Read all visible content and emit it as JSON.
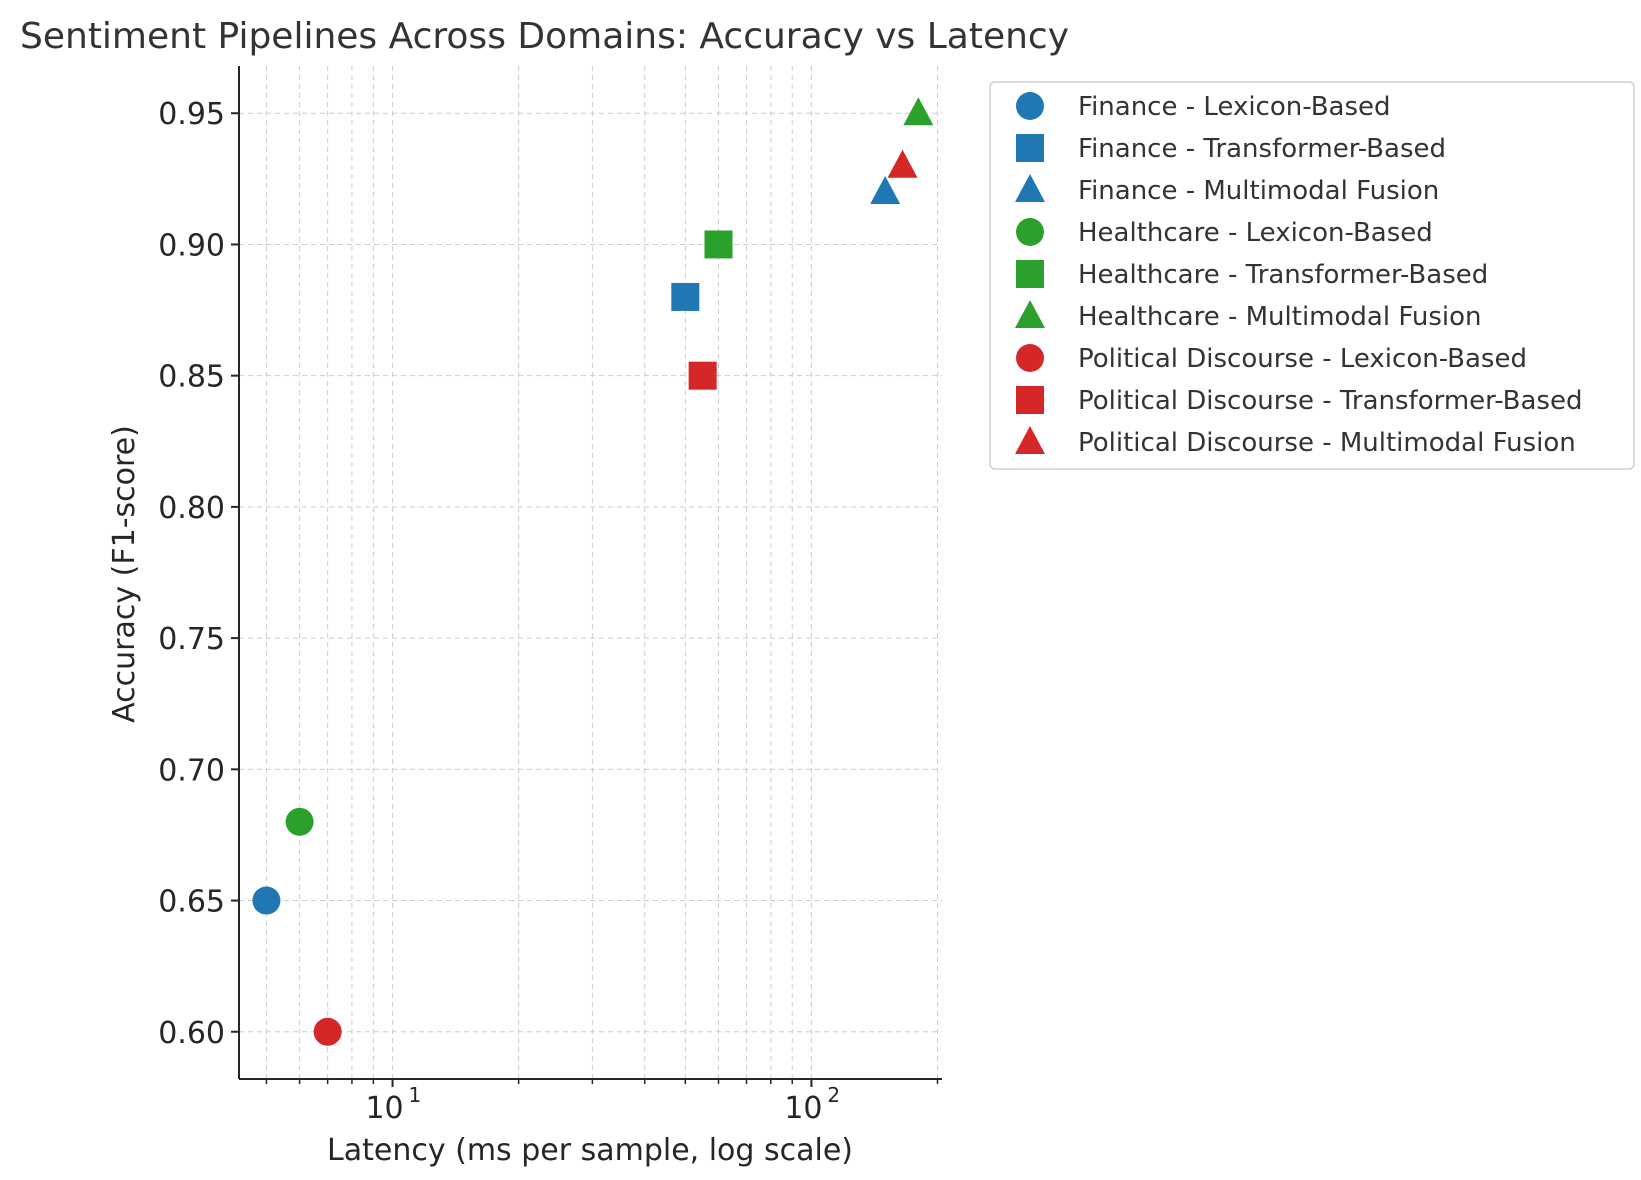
{
  "chart_data": {
    "type": "scatter",
    "title": "Sentiment Pipelines Across Domains: Accuracy vs Latency",
    "xlabel": "Latency (ms per sample, log scale)",
    "ylabel": "Accuracy (F1-score)",
    "xscale": "log",
    "xlim": [
      4.3,
      205
    ],
    "ylim": [
      0.582,
      0.968
    ],
    "x_tick_labels": [
      {
        "value": 10,
        "base": "10",
        "exp": "1"
      },
      {
        "value": 100,
        "base": "10",
        "exp": "2"
      }
    ],
    "y_ticks": [
      0.6,
      0.65,
      0.7,
      0.75,
      0.8,
      0.85,
      0.9,
      0.95
    ],
    "y_tick_labels": [
      "0.60",
      "0.65",
      "0.70",
      "0.75",
      "0.80",
      "0.85",
      "0.90",
      "0.95"
    ],
    "grid": true,
    "legend_position": "outside-right",
    "series": [
      {
        "name": "Finance - Lexicon-Based",
        "color": "#1f77b4",
        "marker": "circle",
        "points": [
          {
            "x": 5,
            "y": 0.65
          }
        ]
      },
      {
        "name": "Finance - Transformer-Based",
        "color": "#1f77b4",
        "marker": "square",
        "points": [
          {
            "x": 50,
            "y": 0.88
          }
        ]
      },
      {
        "name": "Finance - Multimodal Fusion",
        "color": "#1f77b4",
        "marker": "triangle",
        "points": [
          {
            "x": 150,
            "y": 0.92
          }
        ]
      },
      {
        "name": "Healthcare - Lexicon-Based",
        "color": "#2ca02c",
        "marker": "circle",
        "points": [
          {
            "x": 6,
            "y": 0.68
          }
        ]
      },
      {
        "name": "Healthcare - Transformer-Based",
        "color": "#2ca02c",
        "marker": "square",
        "points": [
          {
            "x": 60,
            "y": 0.9
          }
        ]
      },
      {
        "name": "Healthcare - Multimodal Fusion",
        "color": "#2ca02c",
        "marker": "triangle",
        "points": [
          {
            "x": 180,
            "y": 0.95
          }
        ]
      },
      {
        "name": "Political Discourse - Lexicon-Based",
        "color": "#d62728",
        "marker": "circle",
        "points": [
          {
            "x": 7,
            "y": 0.6
          }
        ]
      },
      {
        "name": "Political Discourse - Transformer-Based",
        "color": "#d62728",
        "marker": "square",
        "points": [
          {
            "x": 55,
            "y": 0.85
          }
        ]
      },
      {
        "name": "Political Discourse - Multimodal Fusion",
        "color": "#d62728",
        "marker": "triangle",
        "points": [
          {
            "x": 165,
            "y": 0.93
          }
        ]
      }
    ]
  }
}
